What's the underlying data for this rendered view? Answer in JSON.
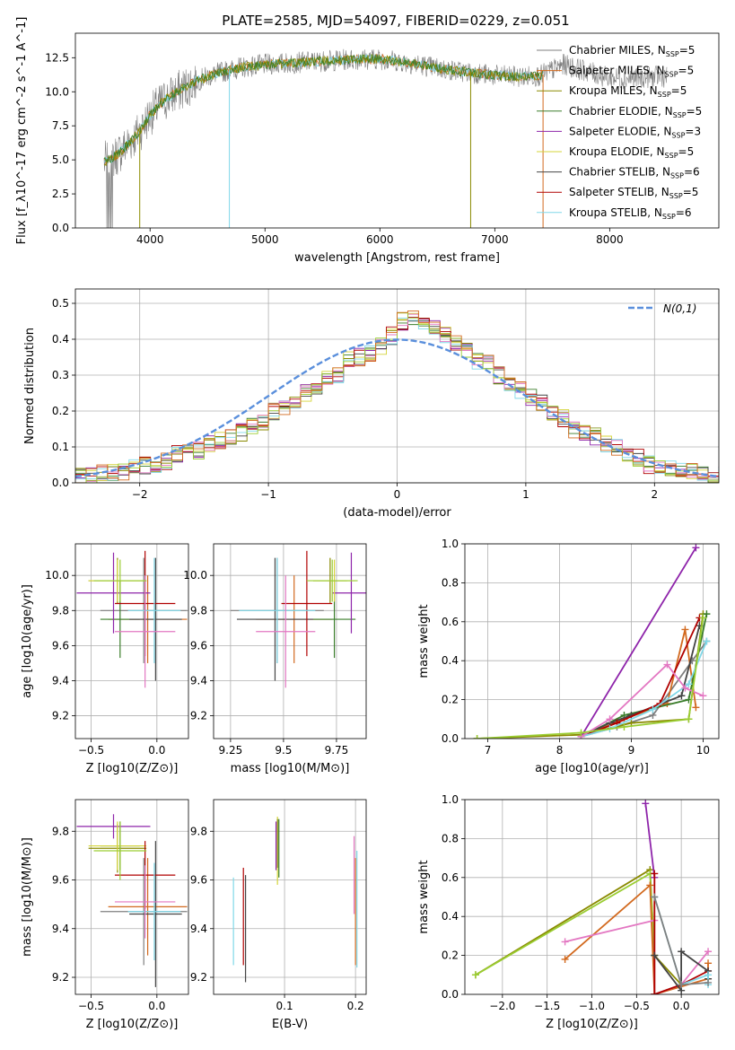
{
  "figure_title": "PLATE=2585, MJD=54097, FIBERID=0229, z=0.051",
  "colors": {
    "grid": "#b0b0b0",
    "gaussian": "#5a8fdc",
    "series": [
      "#7f7f7f",
      "#d2691e",
      "#8a8a00",
      "#3a7d2a",
      "#8e24aa",
      "#d4d43a",
      "#444444",
      "#b00000",
      "#80d8e8",
      "#e377c2",
      "#9acd32"
    ]
  },
  "chart_data": [
    {
      "type": "line",
      "id": "spectrum",
      "xlabel": "wavelength [Angstrom, rest frame]",
      "ylabel": "Flux [f_λ10^-17 erg cm^-2 s^-1 A^-1]",
      "xlim": [
        3350,
        8950
      ],
      "ylim": [
        0,
        14.3
      ],
      "xticks": [
        4000,
        5000,
        6000,
        7000,
        8000
      ],
      "yticks": [
        0.0,
        2.5,
        5.0,
        7.5,
        10.0,
        12.5
      ],
      "grid": false,
      "legend_position": "top-right",
      "continuum": {
        "x": [
          3600,
          3700,
          3800,
          3900,
          4000,
          4100,
          4200,
          4300,
          4400,
          4600,
          4800,
          5000,
          5200,
          5400,
          5600,
          5800,
          6000,
          6200,
          6400,
          6600,
          6800,
          7000,
          7200,
          7400,
          7600,
          7800,
          8000,
          8200,
          8400
        ],
        "y": [
          4.8,
          5.3,
          6.1,
          7.0,
          8.3,
          9.2,
          9.8,
          10.3,
          10.8,
          11.4,
          11.8,
          12.0,
          12.1,
          12.2,
          12.3,
          12.4,
          12.4,
          12.2,
          11.9,
          11.6,
          11.4,
          11.2,
          11.1,
          11.2,
          12.0,
          11.5,
          11.0,
          11.0,
          11.1
        ]
      },
      "data_wave_range": [
        3600,
        8500
      ],
      "model_wave_range": [
        3600,
        7420
      ],
      "series": [
        {
          "name": "Chabrier MILES, N_SSP=5",
          "label": "Chabrier MILES, N",
          "sub": "SSP",
          "n": "=5"
        },
        {
          "name": "Salpeter MILES, N_SSP=5",
          "label": "Salpeter MILES, N",
          "sub": "SSP",
          "n": "=5"
        },
        {
          "name": "Kroupa MILES, N_SSP=5",
          "label": "Kroupa MILES, N",
          "sub": "SSP",
          "n": "=5"
        },
        {
          "name": "Chabrier ELODIE, N_SSP=5",
          "label": "Chabrier ELODIE, N",
          "sub": "SSP",
          "n": "=5"
        },
        {
          "name": "Salpeter ELODIE, N_SSP=3",
          "label": "Salpeter ELODIE, N",
          "sub": "SSP",
          "n": "=3"
        },
        {
          "name": "Kroupa ELODIE, N_SSP=5",
          "label": "Kroupa ELODIE, N",
          "sub": "SSP",
          "n": "=5"
        },
        {
          "name": "Chabrier STELIB, N_SSP=6",
          "label": "Chabrier STELIB, N",
          "sub": "SSP",
          "n": "=6"
        },
        {
          "name": "Salpeter STELIB, N_SSP=5",
          "label": "Salpeter STELIB, N",
          "sub": "SSP",
          "n": "=5"
        },
        {
          "name": "Kroupa STELIB, N_SSP=6",
          "label": "Kroupa STELIB, N",
          "sub": "SSP",
          "n": "=6"
        }
      ]
    },
    {
      "type": "bar",
      "id": "residuals",
      "xlabel": "(data-model)/error",
      "ylabel": "Normed distribution",
      "xlim": [
        -2.5,
        2.5
      ],
      "ylim": [
        0,
        0.54
      ],
      "xticks": [
        -2,
        -1,
        0,
        1,
        2
      ],
      "yticks": [
        0.0,
        0.1,
        0.2,
        0.3,
        0.4,
        0.5
      ],
      "grid": true,
      "legend_position": "top-right",
      "legend_label": "N(0,1)",
      "bin_width": 0.1,
      "bin_start": -2.5,
      "gaussian": {
        "mean": 0,
        "sigma": 1
      },
      "histogram_base": [
        0.02,
        0.02,
        0.03,
        0.03,
        0.03,
        0.04,
        0.05,
        0.05,
        0.06,
        0.08,
        0.09,
        0.09,
        0.11,
        0.12,
        0.13,
        0.14,
        0.16,
        0.17,
        0.2,
        0.21,
        0.22,
        0.25,
        0.26,
        0.29,
        0.3,
        0.34,
        0.35,
        0.36,
        0.38,
        0.41,
        0.45,
        0.46,
        0.44,
        0.43,
        0.41,
        0.39,
        0.37,
        0.34,
        0.33,
        0.3,
        0.27,
        0.26,
        0.24,
        0.22,
        0.2,
        0.18,
        0.15,
        0.14,
        0.13,
        0.11,
        0.1,
        0.08,
        0.07,
        0.05,
        0.05,
        0.04,
        0.03,
        0.03,
        0.03,
        0.02,
        0.02
      ]
    },
    {
      "type": "scatter",
      "id": "age_vs_Z",
      "xlabel": "Z [log10(Z/Z⊙)]",
      "ylabel": "age [log10(age/yr)]",
      "xlim": [
        -0.62,
        0.24
      ],
      "ylim": [
        9.07,
        10.18
      ],
      "xticks": [
        -0.5,
        0.0
      ],
      "yticks": [
        9.2,
        9.4,
        9.6,
        9.8,
        10.0
      ],
      "grid": true,
      "points": [
        {
          "x": -0.1,
          "y": 9.8,
          "xerr": 0.33,
          "yerr": 0.3,
          "color": 0
        },
        {
          "x": -0.07,
          "y": 9.75,
          "xerr": 0.3,
          "yerr": 0.25,
          "color": 1
        },
        {
          "x": -0.3,
          "y": 9.97,
          "xerr": 0.22,
          "yerr": 0.13,
          "color": 2
        },
        {
          "x": -0.28,
          "y": 9.75,
          "xerr": 0.15,
          "yerr": 0.22,
          "color": 3
        },
        {
          "x": -0.33,
          "y": 9.9,
          "xerr": 0.28,
          "yerr": 0.23,
          "color": 4
        },
        {
          "x": -0.3,
          "y": 9.97,
          "xerr": 0.22,
          "yerr": 0.12,
          "color": 5
        },
        {
          "x": -0.01,
          "y": 9.75,
          "xerr": 0.2,
          "yerr": 0.35,
          "color": 6
        },
        {
          "x": -0.09,
          "y": 9.84,
          "xerr": 0.23,
          "yerr": 0.3,
          "color": 7
        },
        {
          "x": -0.02,
          "y": 9.8,
          "xerr": 0.2,
          "yerr": 0.3,
          "color": 8
        },
        {
          "x": -0.09,
          "y": 9.68,
          "xerr": 0.23,
          "yerr": 0.32,
          "color": 9
        },
        {
          "x": -0.28,
          "y": 9.97,
          "xerr": 0.2,
          "yerr": 0.12,
          "color": 10
        }
      ]
    },
    {
      "type": "scatter",
      "id": "age_vs_mass",
      "xlabel": "mass [log10(M/M⊙)]",
      "ylabel": "",
      "xlim": [
        9.17,
        9.89
      ],
      "ylim": [
        9.07,
        10.18
      ],
      "xticks": [
        9.25,
        9.5,
        9.75
      ],
      "yticks": [
        9.2,
        9.4,
        9.6,
        9.8,
        10.0
      ],
      "grid": true,
      "points": [
        {
          "x": 9.47,
          "y": 9.8,
          "xerr": 0.22,
          "yerr": 0.3,
          "color": 0
        },
        {
          "x": 9.55,
          "y": 9.75,
          "xerr": 0.18,
          "yerr": 0.25,
          "color": 1
        },
        {
          "x": 9.72,
          "y": 9.97,
          "xerr": 0.08,
          "yerr": 0.13,
          "color": 2
        },
        {
          "x": 9.74,
          "y": 9.75,
          "xerr": 0.1,
          "yerr": 0.22,
          "color": 3
        },
        {
          "x": 9.82,
          "y": 9.9,
          "xerr": 0.09,
          "yerr": 0.23,
          "color": 4
        },
        {
          "x": 9.74,
          "y": 9.97,
          "xerr": 0.1,
          "yerr": 0.12,
          "color": 5
        },
        {
          "x": 9.46,
          "y": 9.75,
          "xerr": 0.18,
          "yerr": 0.35,
          "color": 6
        },
        {
          "x": 9.61,
          "y": 9.84,
          "xerr": 0.12,
          "yerr": 0.3,
          "color": 7
        },
        {
          "x": 9.47,
          "y": 9.8,
          "xerr": 0.18,
          "yerr": 0.3,
          "color": 8
        },
        {
          "x": 9.51,
          "y": 9.68,
          "xerr": 0.14,
          "yerr": 0.32,
          "color": 9
        },
        {
          "x": 9.73,
          "y": 9.97,
          "xerr": 0.12,
          "yerr": 0.12,
          "color": 10
        }
      ]
    },
    {
      "type": "line",
      "id": "massweight_vs_age",
      "xlabel": "age [log10(age/yr)]",
      "ylabel": "mass weight",
      "xlim": [
        6.68,
        10.22
      ],
      "ylim": [
        0,
        1.0
      ],
      "xticks": [
        7,
        8,
        9,
        10
      ],
      "yticks": [
        0.0,
        0.2,
        0.4,
        0.6,
        0.8,
        1.0
      ],
      "grid": true,
      "series": [
        {
          "color": 0,
          "x": [
            8.3,
            8.8,
            9.3,
            9.85,
            10.05
          ],
          "y": [
            0.01,
            0.06,
            0.12,
            0.4,
            0.5
          ]
        },
        {
          "color": 1,
          "x": [
            8.3,
            8.9,
            9.5,
            9.75,
            9.9
          ],
          "y": [
            0.01,
            0.1,
            0.18,
            0.56,
            0.16
          ]
        },
        {
          "color": 2,
          "x": [
            6.85,
            8.3,
            9.0,
            9.8,
            10.0
          ],
          "y": [
            0.0,
            0.02,
            0.08,
            0.1,
            0.64
          ]
        },
        {
          "color": 3,
          "x": [
            8.3,
            8.9,
            9.8,
            10.05
          ],
          "y": [
            0.01,
            0.12,
            0.2,
            0.64
          ]
        },
        {
          "color": 4,
          "x": [
            8.3,
            9.9
          ],
          "y": [
            0.01,
            0.98
          ]
        },
        {
          "color": 6,
          "x": [
            8.3,
            8.7,
            9.0,
            9.7,
            9.95
          ],
          "y": [
            0.01,
            0.08,
            0.12,
            0.22,
            0.58
          ]
        },
        {
          "color": 7,
          "x": [
            8.3,
            8.8,
            9.4,
            9.95
          ],
          "y": [
            0.01,
            0.08,
            0.18,
            0.62
          ]
        },
        {
          "color": 8,
          "x": [
            8.3,
            8.7,
            9.3,
            9.8,
            10.05
          ],
          "y": [
            0.01,
            0.05,
            0.15,
            0.28,
            0.5
          ]
        },
        {
          "color": 9,
          "x": [
            8.3,
            8.7,
            9.5,
            9.75,
            10.0
          ],
          "y": [
            0.01,
            0.1,
            0.38,
            0.26,
            0.22
          ]
        },
        {
          "color": 10,
          "x": [
            6.85,
            8.3,
            8.9,
            9.8,
            10.0
          ],
          "y": [
            0.0,
            0.03,
            0.06,
            0.1,
            0.62
          ]
        }
      ]
    },
    {
      "type": "scatter",
      "id": "mass_vs_Z",
      "xlabel": "Z [log10(Z/Z⊙)]",
      "ylabel": "mass [log10(M/M⊙)]",
      "xlim": [
        -0.62,
        0.24
      ],
      "ylim": [
        9.13,
        9.93
      ],
      "xticks": [
        -0.5,
        0.0
      ],
      "yticks": [
        9.2,
        9.4,
        9.6,
        9.8
      ],
      "grid": true,
      "points": [
        {
          "x": -0.1,
          "y": 9.47,
          "xerr": 0.33,
          "yerr": 0.22,
          "color": 0
        },
        {
          "x": -0.07,
          "y": 9.49,
          "xerr": 0.3,
          "yerr": 0.2,
          "color": 1
        },
        {
          "x": -0.3,
          "y": 9.73,
          "xerr": 0.22,
          "yerr": 0.1,
          "color": 2
        },
        {
          "x": -0.28,
          "y": 9.74,
          "xerr": 0.15,
          "yerr": 0.1,
          "color": 3
        },
        {
          "x": -0.33,
          "y": 9.82,
          "xerr": 0.28,
          "yerr": 0.05,
          "color": 4
        },
        {
          "x": -0.3,
          "y": 9.74,
          "xerr": 0.22,
          "yerr": 0.1,
          "color": 5
        },
        {
          "x": -0.01,
          "y": 9.46,
          "xerr": 0.2,
          "yerr": 0.3,
          "color": 6
        },
        {
          "x": -0.09,
          "y": 9.62,
          "xerr": 0.23,
          "yerr": 0.14,
          "color": 7
        },
        {
          "x": -0.02,
          "y": 9.47,
          "xerr": 0.2,
          "yerr": 0.2,
          "color": 8
        },
        {
          "x": -0.09,
          "y": 9.51,
          "xerr": 0.23,
          "yerr": 0.15,
          "color": 9
        },
        {
          "x": -0.28,
          "y": 9.72,
          "xerr": 0.2,
          "yerr": 0.12,
          "color": 10
        }
      ]
    },
    {
      "type": "scatter",
      "id": "mass_vs_ebv",
      "xlabel": "E(B-V)",
      "ylabel": "",
      "xlim": [
        0.0,
        0.215
      ],
      "ylim": [
        9.13,
        9.93
      ],
      "xticks": [
        0.1,
        0.2
      ],
      "yticks": [
        9.2,
        9.4,
        9.6,
        9.8
      ],
      "grid": true,
      "points": [
        {
          "x": 0.2,
          "y": 9.47,
          "xerr": 0,
          "yerr": 0.22,
          "color": 1
        },
        {
          "x": 0.202,
          "y": 9.48,
          "xerr": 0,
          "yerr": 0.24,
          "color": 8
        },
        {
          "x": 0.198,
          "y": 9.62,
          "xerr": 0,
          "yerr": 0.16,
          "color": 9
        },
        {
          "x": 0.088,
          "y": 9.74,
          "xerr": 0,
          "yerr": 0.1,
          "color": 4
        },
        {
          "x": 0.09,
          "y": 9.72,
          "xerr": 0,
          "yerr": 0.14,
          "color": 5
        },
        {
          "x": 0.092,
          "y": 9.73,
          "xerr": 0,
          "yerr": 0.12,
          "color": 3
        },
        {
          "x": 0.09,
          "y": 9.75,
          "xerr": 0,
          "yerr": 0.1,
          "color": 2
        },
        {
          "x": 0.042,
          "y": 9.45,
          "xerr": 0,
          "yerr": 0.2,
          "color": 7
        },
        {
          "x": 0.028,
          "y": 9.43,
          "xerr": 0,
          "yerr": 0.18,
          "color": 8
        },
        {
          "x": 0.045,
          "y": 9.4,
          "xerr": 0,
          "yerr": 0.22,
          "color": 6
        }
      ]
    },
    {
      "type": "line",
      "id": "massweight_vs_Z",
      "xlabel": "Z [log10(Z/Z⊙)]",
      "ylabel": "mass weight",
      "xlim": [
        -2.42,
        0.42
      ],
      "ylim": [
        0,
        1.0
      ],
      "xticks": [
        -2.0,
        -1.5,
        -1.0,
        -0.5,
        0.0
      ],
      "yticks": [
        0.0,
        0.2,
        0.4,
        0.6,
        0.8,
        1.0
      ],
      "grid": true,
      "series": [
        {
          "color": 2,
          "x": [
            -2.3,
            -0.35,
            -0.3,
            0.0
          ],
          "y": [
            0.1,
            0.64,
            0.2,
            0.05
          ]
        },
        {
          "color": 10,
          "x": [
            -2.3,
            -0.35,
            -0.3,
            -0.3,
            0.0
          ],
          "y": [
            0.1,
            0.62,
            0.2,
            0.0,
            0.05
          ]
        },
        {
          "color": 1,
          "x": [
            -1.3,
            -0.35,
            -0.3,
            0.3,
            0.3
          ],
          "y": [
            0.18,
            0.56,
            0.0,
            0.08,
            0.16
          ]
        },
        {
          "color": 9,
          "x": [
            -1.3,
            -0.3,
            -0.3,
            0.0,
            0.3
          ],
          "y": [
            0.27,
            0.38,
            0.0,
            0.05,
            0.22
          ]
        },
        {
          "color": 4,
          "x": [
            -0.4,
            -0.3
          ],
          "y": [
            0.98,
            0.6
          ]
        },
        {
          "color": 7,
          "x": [
            -0.3,
            -0.3,
            0.0,
            0.3
          ],
          "y": [
            0.62,
            0.0,
            0.05,
            0.12
          ]
        },
        {
          "color": 6,
          "x": [
            -0.3,
            0.0,
            0.0,
            0.3,
            0.3
          ],
          "y": [
            0.2,
            0.02,
            0.22,
            0.12,
            0.08
          ]
        },
        {
          "color": 8,
          "x": [
            -0.3,
            0.0,
            0.3,
            0.3
          ],
          "y": [
            0.5,
            0.05,
            0.1,
            0.05
          ]
        },
        {
          "color": 0,
          "x": [
            -0.3,
            0.0,
            0.3
          ],
          "y": [
            0.5,
            0.05,
            0.06
          ]
        }
      ]
    }
  ]
}
